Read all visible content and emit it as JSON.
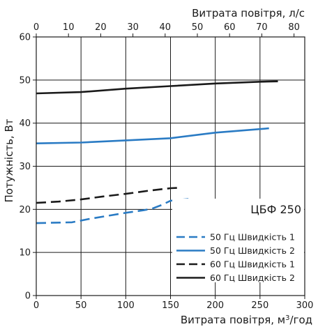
{
  "chart_data": {
    "type": "line",
    "model_label": "ЦБФ 250",
    "x_bottom": {
      "label": "Витрата повітря, м",
      "label_sup": "3",
      "label_suffix": "/год",
      "lim": [
        0,
        300
      ],
      "ticks": [
        0,
        50,
        100,
        150,
        200,
        250,
        300
      ]
    },
    "x_top": {
      "label": "Витрата повітря, л/с",
      "lim": [
        0,
        83.33
      ],
      "ticks": [
        0,
        10,
        20,
        30,
        40,
        50,
        60,
        70,
        80
      ]
    },
    "y": {
      "label": "Потужність, Вт",
      "lim": [
        0,
        60
      ],
      "ticks": [
        0,
        10,
        20,
        30,
        40,
        50,
        60
      ]
    },
    "grid": true,
    "legend_position": "bottom-right",
    "series": [
      {
        "name": "50 Гц Швидкість 1",
        "color": "#2a7bc4",
        "dash": "dashed",
        "x": [
          0,
          40,
          60,
          80,
          100,
          120,
          130,
          140,
          150,
          170
        ],
        "y": [
          16.8,
          17.0,
          17.8,
          18.5,
          19.2,
          19.8,
          20.2,
          21.0,
          22.0,
          22.4
        ]
      },
      {
        "name": "50 Гц Швидкість 2",
        "color": "#2a7bc4",
        "dash": "solid",
        "x": [
          0,
          50,
          100,
          150,
          200,
          260
        ],
        "y": [
          35.3,
          35.5,
          36.0,
          36.5,
          37.8,
          38.8
        ]
      },
      {
        "name": "60 Гц Швидкість 1",
        "color": "#1a1a1a",
        "dash": "dashed",
        "x": [
          0,
          25,
          50,
          75,
          100,
          125,
          150,
          160
        ],
        "y": [
          21.5,
          21.8,
          22.3,
          23.0,
          23.6,
          24.3,
          24.9,
          25.0
        ]
      },
      {
        "name": "60 Гц Швидкість 2",
        "color": "#1a1a1a",
        "dash": "solid",
        "x": [
          0,
          50,
          100,
          150,
          200,
          250,
          270
        ],
        "y": [
          46.9,
          47.2,
          48.0,
          48.6,
          49.2,
          49.6,
          49.7
        ]
      }
    ]
  }
}
